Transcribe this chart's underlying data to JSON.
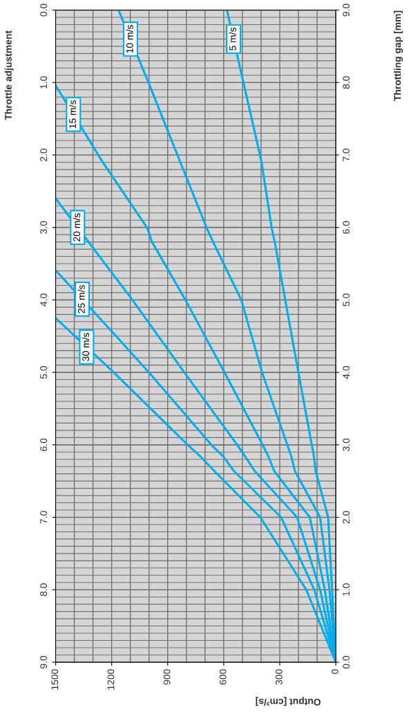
{
  "chart_data": {
    "type": "line",
    "xlabel": "Output [cm³/s]",
    "ylabel": "Throttle adjustment",
    "y2label": "Throttling gap [mm]",
    "xlim": [
      1500,
      0
    ],
    "xticks": [
      1500,
      1200,
      900,
      600,
      300,
      0
    ],
    "ylim": [
      9,
      0
    ],
    "yticks": [
      {
        "value": 0,
        "label": "0.0"
      },
      {
        "value": 1,
        "label": "1.0"
      },
      {
        "value": 2,
        "label": "2.0"
      },
      {
        "value": 3,
        "label": "3.0"
      },
      {
        "value": 4,
        "label": "4.0"
      },
      {
        "value": 5,
        "label": "5.0"
      },
      {
        "value": 6,
        "label": "6.0"
      },
      {
        "value": 7,
        "label": "7.0"
      },
      {
        "value": 8,
        "label": "8.0"
      },
      {
        "value": 9,
        "label": "9.0"
      }
    ],
    "y2lim": [
      0,
      9
    ],
    "y2ticks": [
      {
        "value": 0,
        "label": "0.0"
      },
      {
        "value": 1,
        "label": "1.0"
      },
      {
        "value": 2,
        "label": "2.0"
      },
      {
        "value": 3,
        "label": "3.0"
      },
      {
        "value": 4,
        "label": "4.0"
      },
      {
        "value": 5,
        "label": "5.0"
      },
      {
        "value": 6,
        "label": "6.0"
      },
      {
        "value": 7,
        "label": "7.0"
      },
      {
        "value": 8,
        "label": "8.0"
      },
      {
        "value": 9,
        "label": "9.0"
      }
    ],
    "grid": true,
    "marker": "none",
    "line_style": "solid",
    "series": [
      {
        "name": "5 m/s",
        "color": "#00aeef",
        "x": [
          583,
          398,
          343,
          327,
          201,
          117,
          108,
          41,
          20,
          0
        ],
        "values": [
          0,
          2.09,
          3.01,
          3.2,
          4.99,
          6.16,
          6.36,
          7,
          8,
          9
        ]
      },
      {
        "name": "10 m/s",
        "color": "#00aeef",
        "x": [
          1163,
          1006,
          691,
          657,
          506,
          395,
          238,
          219,
          84,
          34,
          0
        ],
        "values": [
          0,
          0.98,
          3.01,
          3.2,
          4,
          5,
          6.16,
          6.36,
          7,
          8,
          9
        ]
      },
      {
        "name": "15 m/s",
        "color": "#00aeef",
        "x": [
          1500,
          1250,
          1009,
          984,
          805,
          596,
          392,
          361,
          330,
          139,
          59,
          0
        ],
        "values": [
          1.04,
          2.09,
          3.01,
          3.2,
          4,
          5,
          6,
          6.16,
          6.36,
          7,
          8,
          9
        ]
      },
      {
        "name": "20 m/s",
        "color": "#00aeef",
        "x": [
          1500,
          1089,
          811,
          528,
          485,
          435,
          207,
          84,
          0
        ],
        "values": [
          2.6,
          4,
          5,
          6,
          6.16,
          6.36,
          7,
          8,
          9
        ]
      },
      {
        "name": "25 m/s",
        "color": "#00aeef",
        "x": [
          1500,
          1176,
          1001,
          666,
          602,
          546,
          293,
          115,
          0
        ],
        "values": [
          3.59,
          4.5,
          5,
          6,
          6.16,
          6.36,
          7,
          8,
          9
        ]
      },
      {
        "name": "30 m/s",
        "color": "#00aeef",
        "x": [
          1500,
          1189,
          793,
          725,
          651,
          404,
          158,
          0
        ],
        "values": [
          4.25,
          5,
          6,
          6.16,
          6.36,
          7,
          8,
          9
        ]
      }
    ]
  }
}
